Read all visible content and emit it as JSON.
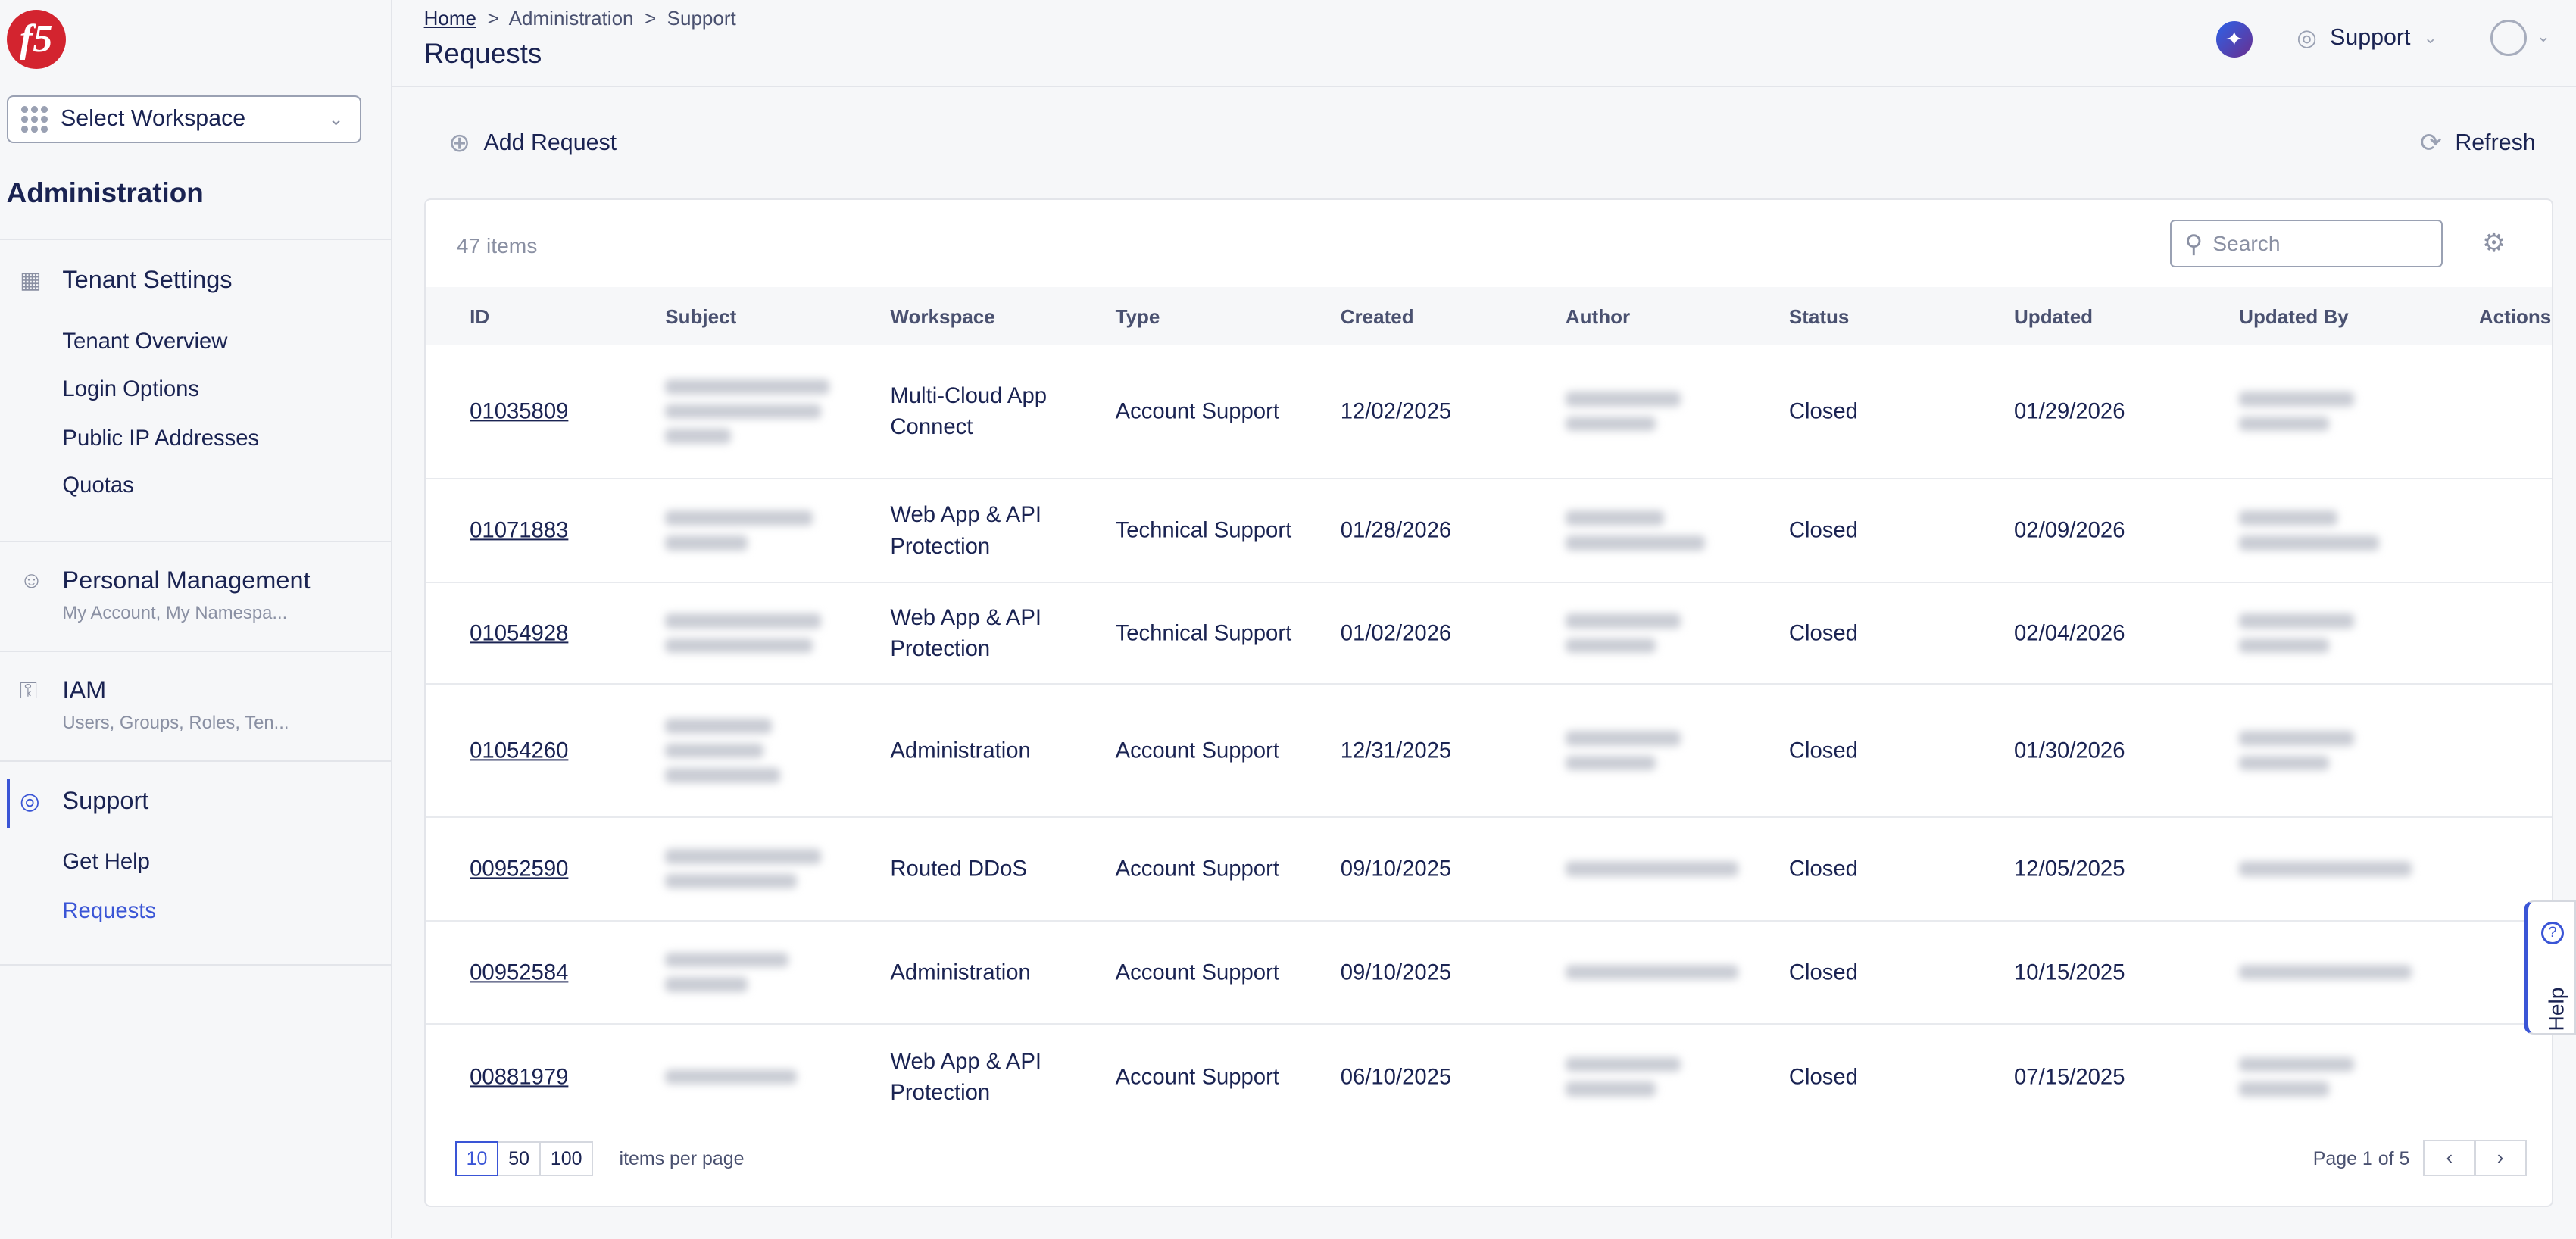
{
  "sidebar": {
    "logo": "f5",
    "workspace": "Select Workspace",
    "section_title": "Administration",
    "tenant": {
      "title": "Tenant Settings",
      "items": [
        "Tenant Overview",
        "Login Options",
        "Public IP Addresses",
        "Quotas"
      ]
    },
    "personal": {
      "title": "Personal Management",
      "sub": "My Account, My Namespa..."
    },
    "iam": {
      "title": "IAM",
      "sub": "Users, Groups, Roles, Ten..."
    },
    "support": {
      "title": "Support",
      "items": [
        "Get Help",
        "Requests"
      ]
    }
  },
  "header": {
    "breadcrumb": [
      "Home",
      "Administration",
      "Support"
    ],
    "title": "Requests",
    "support_menu": "Support"
  },
  "toolbar": {
    "add": "Add Request",
    "refresh": "Refresh"
  },
  "table": {
    "count": "47 items",
    "search_placeholder": "Search",
    "columns": [
      "ID",
      "Subject",
      "Workspace",
      "Type",
      "Created",
      "Author",
      "Status",
      "Updated",
      "Updated By",
      "Actions"
    ],
    "rows": [
      {
        "id": "01035809",
        "workspace": "Multi-Cloud App Connect",
        "type": "Account Support",
        "created": "12/02/2025",
        "status": "Closed",
        "updated": "01/29/2026"
      },
      {
        "id": "01071883",
        "workspace": "Web App & API Protection",
        "type": "Technical Support",
        "created": "01/28/2026",
        "status": "Closed",
        "updated": "02/09/2026"
      },
      {
        "id": "01054928",
        "workspace": "Web App & API Protection",
        "type": "Technical Support",
        "created": "01/02/2026",
        "status": "Closed",
        "updated": "02/04/2026"
      },
      {
        "id": "01054260",
        "workspace": "Administration",
        "type": "Account Support",
        "created": "12/31/2025",
        "status": "Closed",
        "updated": "01/30/2026"
      },
      {
        "id": "00952590",
        "workspace": "Routed DDoS",
        "type": "Account Support",
        "created": "09/10/2025",
        "status": "Closed",
        "updated": "12/05/2025"
      },
      {
        "id": "00952584",
        "workspace": "Administration",
        "type": "Account Support",
        "created": "09/10/2025",
        "status": "Closed",
        "updated": "10/15/2025"
      },
      {
        "id": "00881979",
        "workspace": "Web App & API Protection",
        "type": "Account Support",
        "created": "06/10/2025",
        "status": "Closed",
        "updated": "07/15/2025"
      }
    ]
  },
  "pagination": {
    "sizes": [
      "10",
      "50",
      "100"
    ],
    "selected": "10",
    "label": "items per page",
    "page": "Page 1 of 5"
  },
  "help": "Help"
}
